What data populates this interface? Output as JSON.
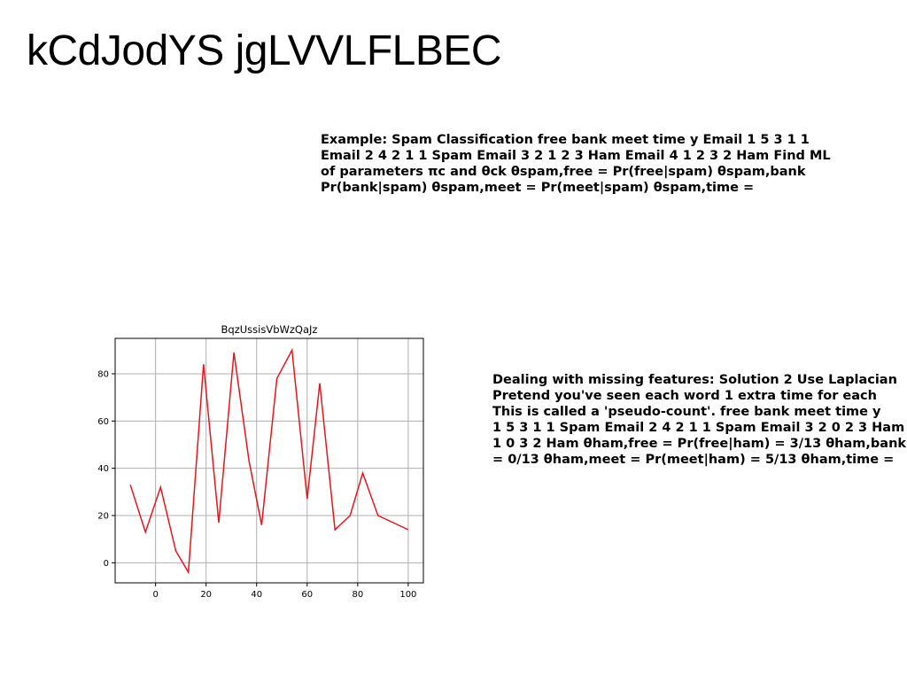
{
  "slide": {
    "title": "kCdJodYS jgLVVLFLBEC"
  },
  "text_block_1": {
    "lines": [
      "Example: Spam Classification free bank meet time y Email 1 5 3 1 1",
      "Email 2 4 2 1 1 Spam Email 3 2 1 2 3 Ham Email 4 1 2 3 2 Ham Find ML",
      "of parameters πc and θck θspam,free = Pr(free|spam) θspam,bank",
      "Pr(bank|spam) θspam,meet = Pr(meet|spam) θspam,time ="
    ]
  },
  "text_block_2": {
    "lines": [
      "Dealing with missing features: Solution 2 Use Laplacian",
      "Pretend you've seen each word 1 extra time for each",
      "This is called a 'pseudo-count'. free bank meet time y",
      "1 5 3 1 1 Spam Email 2 4 2 1 1 Spam Email 3 2 0 2 3 Ham Email",
      "1 0 3 2 Ham θham,free = Pr(free|ham) = 3/13 θham,bank =",
      "= 0/13 θham,meet = Pr(meet|ham) = 5/13 θham,time ="
    ]
  },
  "chart_data": {
    "type": "line",
    "title": "BqzUssisVbWzQaJz",
    "xlabel": "",
    "ylabel": "",
    "x": [
      -10,
      -4,
      2,
      8,
      13,
      19,
      25,
      31,
      37,
      42,
      48,
      54,
      60,
      65,
      71,
      77,
      82,
      88,
      100
    ],
    "series": [
      {
        "values": [
          33,
          13,
          32,
          5,
          -4,
          84,
          17,
          89,
          43,
          16,
          78,
          90,
          27,
          76,
          14,
          20,
          38,
          20,
          14
        ],
        "color": "#e8141c"
      }
    ],
    "xlim": [
      -16,
      106
    ],
    "ylim": [
      -8.5,
      95
    ],
    "xticks": [
      0,
      20,
      40,
      60,
      80,
      100
    ],
    "yticks": [
      0,
      20,
      40,
      60,
      80
    ],
    "grid": true,
    "colors": {
      "line": "#e8141c",
      "grid": "#b0b0b0",
      "axes": "#000000"
    }
  }
}
